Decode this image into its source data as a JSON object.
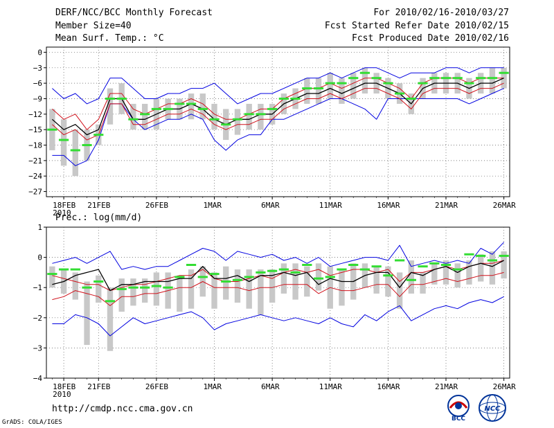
{
  "header": {
    "title": "DERF/NCC/BCC Monthly Forecast",
    "member_size": "Member Size=40",
    "variable_top": "Mean Surf. Temp.: °C",
    "period": "For 2010/02/16-2010/03/27",
    "refer_date": "Fcst Started Refer Date 2010/02/15",
    "produced_date": "Fcst Produced Date 2010/02/16"
  },
  "footer": {
    "url": "http://cmdp.ncc.cma.gov.cn",
    "credit": "GrADS: COLA/IGES",
    "logo_bcc": "BCC",
    "logo_ncc": "NCC"
  },
  "colors": {
    "background": "#ffffff",
    "box": "#c8c8c8",
    "mean": "#000000",
    "spread": "#d0101a",
    "extreme": "#0000e0",
    "median": "#33dd33",
    "grid": "#555555"
  },
  "chart_data": [
    {
      "type": "line",
      "title": "Mean Surf. Temp.: °C",
      "x_days": 40,
      "x_tick_labels": [
        "18FEB",
        "21FEB",
        "26FEB",
        "1MAR",
        "6MAR",
        "11MAR",
        "16MAR",
        "21MAR",
        "26MAR"
      ],
      "x_tick_days": [
        2,
        5,
        10,
        15,
        20,
        25,
        30,
        35,
        40
      ],
      "year_label": "2010",
      "ylim": [
        -28,
        1
      ],
      "yticks": [
        0,
        -3,
        -6,
        -9,
        -12,
        -15,
        -18,
        -21,
        -24,
        -27
      ],
      "series": [
        {
          "name": "max",
          "values": [
            -7,
            -9,
            -8,
            -10,
            -9,
            -5,
            -5,
            -7,
            -9,
            -9,
            -8,
            -8,
            -7,
            -7,
            -6,
            -8,
            -10,
            -9,
            -8,
            -8,
            -7,
            -6,
            -5,
            -5,
            -4,
            -5,
            -4,
            -3,
            -3,
            -4,
            -5,
            -4,
            -4,
            -4,
            -3,
            -3,
            -4,
            -3,
            -3,
            -3
          ]
        },
        {
          "name": "spread_high",
          "values": [
            -11,
            -13,
            -12,
            -15,
            -13,
            -8,
            -8,
            -11,
            -12,
            -11,
            -10,
            -10,
            -9,
            -10,
            -12,
            -13,
            -13,
            -12,
            -11,
            -11,
            -9,
            -8,
            -7,
            -7,
            -6,
            -7,
            -6,
            -5,
            -5,
            -6,
            -7,
            -9,
            -6,
            -5,
            -5,
            -5,
            -6,
            -5,
            -5,
            -5
          ]
        },
        {
          "name": "mean",
          "values": [
            -13,
            -15,
            -14,
            -16,
            -15,
            -9,
            -9,
            -13,
            -13,
            -12,
            -11,
            -11,
            -10,
            -11,
            -13,
            -14,
            -13,
            -13,
            -12,
            -12,
            -10,
            -9,
            -8,
            -8,
            -7,
            -8,
            -7,
            -6,
            -6,
            -7,
            -8,
            -10,
            -7,
            -6,
            -6,
            -6,
            -7,
            -6,
            -6,
            -5
          ]
        },
        {
          "name": "spread_low",
          "values": [
            -14,
            -16,
            -15,
            -17,
            -16,
            -10,
            -10,
            -14,
            -14,
            -13,
            -12,
            -12,
            -11,
            -12,
            -14,
            -15,
            -14,
            -14,
            -13,
            -13,
            -11,
            -10,
            -9,
            -9,
            -8,
            -9,
            -8,
            -7,
            -7,
            -8,
            -9,
            -11,
            -8,
            -7,
            -7,
            -7,
            -8,
            -7,
            -7,
            -6
          ]
        },
        {
          "name": "min",
          "values": [
            -20,
            -20,
            -22,
            -21,
            -17,
            -10,
            -10,
            -13,
            -15,
            -14,
            -13,
            -13,
            -12,
            -13,
            -17,
            -19,
            -17,
            -16,
            -16,
            -13,
            -13,
            -12,
            -11,
            -10,
            -9,
            -9,
            -10,
            -11,
            -13,
            -9,
            -9,
            -9,
            -9,
            -9,
            -9,
            -9,
            -10,
            -9,
            -8,
            -7
          ]
        },
        {
          "name": "box_high",
          "values": [
            -11,
            -13,
            -15,
            -15,
            -14,
            -7,
            -6,
            -10,
            -10,
            -9,
            -9,
            -9,
            -8,
            -8,
            -10,
            -11,
            -11,
            -10,
            -10,
            -10,
            -8,
            -7,
            -5,
            -5,
            -4,
            -5,
            -4,
            -3,
            -4,
            -5,
            -6,
            -8,
            -5,
            -4,
            -4,
            -4,
            -5,
            -4,
            -3,
            -3
          ]
        },
        {
          "name": "box_low",
          "values": [
            -19,
            -22,
            -24,
            -21,
            -18,
            -14,
            -12,
            -15,
            -15,
            -15,
            -13,
            -13,
            -13,
            -13,
            -15,
            -17,
            -16,
            -15,
            -15,
            -14,
            -12,
            -11,
            -10,
            -10,
            -9,
            -10,
            -9,
            -8,
            -8,
            -9,
            -10,
            -12,
            -9,
            -8,
            -8,
            -8,
            -9,
            -8,
            -8,
            -7
          ]
        },
        {
          "name": "median",
          "values": [
            -15,
            -17,
            -19,
            -18,
            -16,
            -9,
            -9,
            -13,
            -12,
            -11,
            -11,
            -10,
            -10,
            -11,
            -13,
            -14,
            -13,
            -12,
            -12,
            -11,
            -9,
            -9,
            -7,
            -7,
            -6,
            -6,
            -5,
            -4,
            -5,
            -6,
            -8,
            -9,
            -6,
            -5,
            -5,
            -5,
            -6,
            -5,
            -5,
            -4
          ]
        }
      ]
    },
    {
      "type": "line",
      "title": "Prec.: log(mm/d)",
      "x_days": 40,
      "x_tick_labels": [
        "18FEB",
        "21FEB",
        "26FEB",
        "1MAR",
        "6MAR",
        "11MAR",
        "16MAR",
        "21MAR",
        "26MAR"
      ],
      "x_tick_days": [
        2,
        5,
        10,
        15,
        20,
        25,
        30,
        35,
        40
      ],
      "year_label": "2010",
      "ylim": [
        -4,
        1
      ],
      "yticks": [
        1,
        0,
        -1,
        -2,
        -3,
        -4
      ],
      "series": [
        {
          "name": "max",
          "values": [
            -0.2,
            -0.1,
            0.0,
            -0.2,
            0.0,
            0.2,
            -0.4,
            -0.3,
            -0.4,
            -0.3,
            -0.3,
            -0.1,
            0.1,
            0.3,
            0.2,
            -0.1,
            0.2,
            0.1,
            0.0,
            0.1,
            -0.1,
            0.0,
            -0.2,
            0.0,
            -0.3,
            -0.2,
            -0.1,
            0.0,
            0.0,
            -0.1,
            0.4,
            -0.3,
            -0.2,
            -0.1,
            -0.2,
            -0.1,
            -0.2,
            0.3,
            0.1,
            0.5
          ]
        },
        {
          "name": "spread_high",
          "values": [
            -0.6,
            -0.7,
            -0.8,
            -0.9,
            -0.9,
            -1.1,
            -1.0,
            -0.9,
            -0.9,
            -0.8,
            -0.7,
            -0.6,
            -0.6,
            -0.4,
            -0.7,
            -0.8,
            -0.8,
            -0.7,
            -0.6,
            -0.7,
            -0.5,
            -0.4,
            -0.5,
            -0.4,
            -0.6,
            -0.5,
            -0.4,
            -0.4,
            -0.5,
            -0.4,
            -0.8,
            -0.5,
            -0.5,
            -0.4,
            -0.3,
            -0.4,
            -0.3,
            -0.2,
            -0.2,
            -0.1
          ]
        },
        {
          "name": "mean",
          "values": [
            -0.9,
            -0.8,
            -0.6,
            -0.5,
            -0.4,
            -1.1,
            -0.9,
            -0.9,
            -0.8,
            -0.8,
            -0.8,
            -0.7,
            -0.7,
            -0.3,
            -0.7,
            -0.7,
            -0.6,
            -0.8,
            -0.6,
            -0.6,
            -0.5,
            -0.6,
            -0.5,
            -0.9,
            -0.7,
            -0.8,
            -0.8,
            -0.6,
            -0.5,
            -0.5,
            -1.0,
            -0.5,
            -0.6,
            -0.4,
            -0.3,
            -0.5,
            -0.3,
            -0.2,
            -0.3,
            -0.1
          ]
        },
        {
          "name": "spread_low",
          "values": [
            -1.4,
            -1.3,
            -1.1,
            -1.2,
            -1.3,
            -1.6,
            -1.3,
            -1.3,
            -1.2,
            -1.2,
            -1.1,
            -1.0,
            -1.0,
            -0.8,
            -1.0,
            -1.0,
            -1.0,
            -1.1,
            -1.0,
            -1.0,
            -0.9,
            -0.9,
            -0.9,
            -1.2,
            -1.0,
            -1.1,
            -1.1,
            -1.0,
            -0.9,
            -0.9,
            -1.3,
            -0.9,
            -0.9,
            -0.8,
            -0.7,
            -0.8,
            -0.7,
            -0.6,
            -0.6,
            -0.5
          ]
        },
        {
          "name": "min",
          "values": [
            -2.2,
            -2.2,
            -1.9,
            -2.0,
            -2.2,
            -2.6,
            -2.3,
            -2.0,
            -2.2,
            -2.1,
            -2.0,
            -1.9,
            -1.8,
            -2.0,
            -2.4,
            -2.2,
            -2.1,
            -2.0,
            -1.9,
            -2.0,
            -2.1,
            -2.0,
            -2.1,
            -2.2,
            -2.0,
            -2.2,
            -2.3,
            -1.9,
            -2.1,
            -1.8,
            -1.6,
            -2.1,
            -1.9,
            -1.7,
            -1.6,
            -1.7,
            -1.5,
            -1.4,
            -1.5,
            -1.3
          ]
        },
        {
          "name": "box_high",
          "values": [
            -0.3,
            -0.4,
            -0.5,
            -0.8,
            -0.6,
            -1.0,
            -0.7,
            -0.7,
            -0.7,
            -0.5,
            -0.5,
            -0.6,
            -0.4,
            -0.3,
            -0.5,
            -0.3,
            -0.4,
            -0.4,
            -0.4,
            -0.4,
            -0.2,
            -0.2,
            -0.3,
            -0.2,
            -0.3,
            -0.4,
            -0.2,
            -0.2,
            -0.3,
            -0.3,
            -0.5,
            -0.1,
            -0.5,
            -0.2,
            -0.1,
            -0.2,
            -0.1,
            0.1,
            0.2,
            0.2
          ]
        },
        {
          "name": "box_low",
          "values": [
            -1.0,
            -1.2,
            -1.4,
            -2.9,
            -1.5,
            -3.1,
            -1.8,
            -1.6,
            -1.5,
            -1.6,
            -1.7,
            -1.8,
            -1.7,
            -1.3,
            -1.7,
            -1.4,
            -1.5,
            -1.7,
            -1.9,
            -1.5,
            -1.2,
            -1.4,
            -1.3,
            -1.1,
            -1.7,
            -1.6,
            -1.4,
            -1.0,
            -1.2,
            -1.3,
            -1.7,
            -1.2,
            -1.2,
            -0.9,
            -0.9,
            -1.0,
            -0.9,
            -0.8,
            -0.9,
            -0.7
          ]
        },
        {
          "name": "median",
          "values": [
            -0.55,
            -0.4,
            -0.4,
            -1.0,
            -0.8,
            -1.45,
            -1.05,
            -1.0,
            -1.0,
            -0.95,
            -1.0,
            -0.65,
            -0.25,
            -0.65,
            -0.55,
            -0.8,
            -0.75,
            -0.65,
            -0.5,
            -0.45,
            -0.4,
            -0.5,
            -0.25,
            -0.7,
            -0.65,
            -0.4,
            -0.25,
            -0.4,
            -0.3,
            -0.6,
            -0.1,
            -0.75,
            -0.3,
            -0.2,
            -0.25,
            -0.4,
            0.1,
            0.05,
            -0.1,
            0.05
          ]
        }
      ]
    }
  ]
}
